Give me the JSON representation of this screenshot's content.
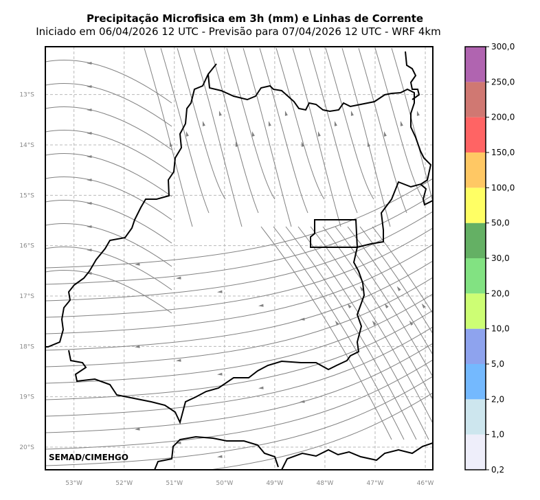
{
  "title": "Precipitação Microfisica em 3h (mm) e Linhas de Corrente",
  "subtitle": "Iniciado em 06/04/2026 12 UTC - Previsão para 07/04/2026 12 UTC - WRF 4km",
  "credit": "SEMAD/CIMEHGO",
  "map": {
    "lon_range": [
      -53.57,
      -45.85
    ],
    "lat_range": [
      -20.45,
      -12.05
    ],
    "lat_ticks": [
      {
        "value": -13,
        "label": "13°S"
      },
      {
        "value": -14,
        "label": "14°S"
      },
      {
        "value": -15,
        "label": "15°S"
      },
      {
        "value": -16,
        "label": "16°S"
      },
      {
        "value": -17,
        "label": "17°S"
      },
      {
        "value": -18,
        "label": "18°S"
      },
      {
        "value": -19,
        "label": "19°S"
      },
      {
        "value": -20,
        "label": "20°S"
      }
    ],
    "lon_ticks": [
      {
        "value": -53,
        "label": "53°W"
      },
      {
        "value": -52,
        "label": "52°W"
      },
      {
        "value": -51,
        "label": "51°W"
      },
      {
        "value": -50,
        "label": "50°W"
      },
      {
        "value": -49,
        "label": "49°W"
      },
      {
        "value": -48,
        "label": "48°W"
      },
      {
        "value": -47,
        "label": "47°W"
      },
      {
        "value": -46,
        "label": "46°W"
      }
    ],
    "grid": true,
    "streamline_color": "#808080",
    "border_color": "#000000"
  },
  "colorbar": {
    "labels": [
      "0,2",
      "1,0",
      "2,0",
      "5,0",
      "10,0",
      "20,0",
      "30,0",
      "50,0",
      "100,0",
      "150,0",
      "200,0",
      "250,0",
      "300,0"
    ],
    "colors": [
      "#eeeefa",
      "#cde6ee",
      "#74b9fe",
      "#8ea3ee",
      "#cdfe74",
      "#82e282",
      "#64b064",
      "#ffff64",
      "#ffc864",
      "#ff6464",
      "#d07872",
      "#b064b0"
    ]
  }
}
